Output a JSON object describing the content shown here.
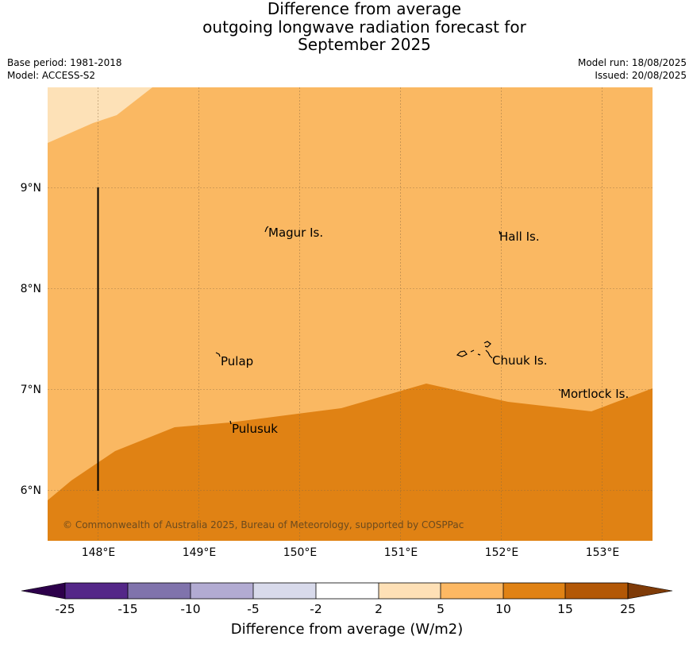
{
  "title": {
    "line1": "Difference from average",
    "line2": "outgoing longwave radiation forecast for",
    "line3": "September 2025"
  },
  "meta": {
    "base_period": "Base period: 1981-2018",
    "model": "Model: ACCESS-S2",
    "model_run": "Model run: 18/08/2025",
    "issued": "Issued: 20/08/2025"
  },
  "map": {
    "lat_ticks": [
      "9°N",
      "8°N",
      "7°N",
      "6°N"
    ],
    "lon_ticks": [
      "148°E",
      "149°E",
      "150°E",
      "151°E",
      "152°E",
      "153°E"
    ],
    "places": [
      "Magur Is.",
      "Hall Is.",
      "Pulap",
      "Chuuk Is.",
      "Mortlock Is.",
      "Pulusuk"
    ],
    "copyright": "© Commonwealth of Australia 2025, Bureau of Meteorology, supported by COSPPac",
    "region_colors": {
      "band_2_5": "#fde1b7",
      "band_5_10": "#fab862",
      "band_10_15": "#e08214"
    }
  },
  "colorbar": {
    "title": "Difference from average (W/m2)",
    "labels": [
      "-25",
      "-15",
      "-10",
      "-5",
      "-2",
      "2",
      "5",
      "10",
      "15",
      "25"
    ],
    "colors": [
      "#2d004b",
      "#542788",
      "#8073ac",
      "#b2abd2",
      "#d8daeb",
      "#ffffff",
      "#fee0b6",
      "#fdb863",
      "#e08214",
      "#b35806",
      "#7f3b08"
    ]
  }
}
